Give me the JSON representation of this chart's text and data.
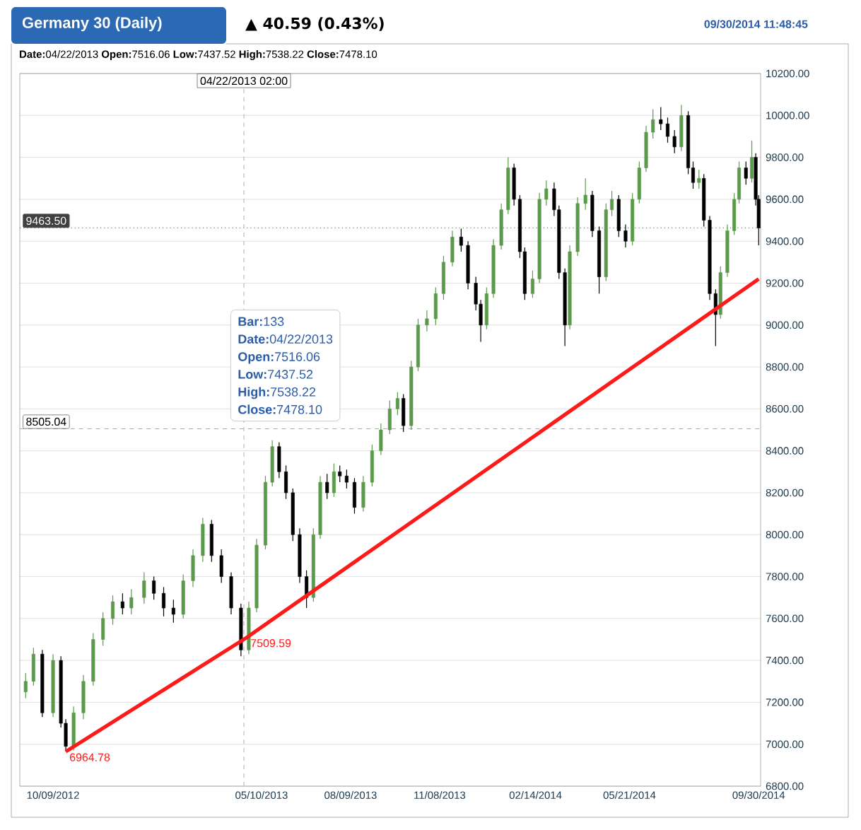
{
  "chart_data": {
    "type": "candlestick",
    "title": "Germany 30 (Daily)",
    "subtitle": "▲ 40.59 (0.43%)",
    "annotations": [
      "09/30/2014 11:48:45",
      "**Date:**04/22/2013 **Open:**7516.06 **Low:**7437.52 **High:**7538.22 **Close:**7478.10",
      "**Bar:**133",
      "**Date:**04/22/2013",
      "**Open:**7516.06",
      "**Low:**7437.52",
      "**High:**7538.22",
      "**Close:**7478.10",
      {
        "text": "6964.78",
        "x": "2012-10-22",
        "y": 6964.78
      },
      {
        "text": "7509.59",
        "x": "2013-04-25",
        "y": 7509.59
      }
    ],
    "x": [
      "2012-09-11",
      "2012-09-19",
      "2012-09-28",
      "2012-10-09",
      "2012-10-17",
      "2012-10-22",
      "2012-10-30",
      "2012-11-09",
      "2012-11-19",
      "2012-11-29",
      "2012-12-09",
      "2012-12-19",
      "2012-12-28",
      "2013-01-10",
      "2013-01-20",
      "2013-01-30",
      "2013-02-09",
      "2013-02-19",
      "2013-03-01",
      "2013-03-11",
      "2013-03-20",
      "2013-03-30",
      "2013-04-09",
      "2013-04-19",
      "2013-04-27",
      "2013-05-05",
      "2013-05-14",
      "2013-05-21",
      "2013-05-28",
      "2013-06-04",
      "2013-06-11",
      "2013-06-18",
      "2013-06-25",
      "2013-07-02",
      "2013-07-09",
      "2013-07-16",
      "2013-07-23",
      "2013-07-29",
      "2013-08-05",
      "2013-08-13",
      "2013-08-22",
      "2013-08-31",
      "2013-09-09",
      "2013-09-18",
      "2013-09-26",
      "2013-10-02",
      "2013-10-10",
      "2013-10-17",
      "2013-10-26",
      "2013-11-04",
      "2013-11-12",
      "2013-11-21",
      "2013-11-30",
      "2013-12-07",
      "2013-12-15",
      "2013-12-20",
      "2013-12-26",
      "2014-01-02",
      "2014-01-10",
      "2014-01-17",
      "2014-01-23",
      "2014-01-29",
      "2014-02-03",
      "2014-02-11",
      "2014-02-18",
      "2014-02-25",
      "2014-03-05",
      "2014-03-10",
      "2014-03-16",
      "2014-03-21",
      "2014-03-29",
      "2014-04-06",
      "2014-04-13",
      "2014-04-20",
      "2014-04-27",
      "2014-05-03",
      "2014-05-10",
      "2014-05-17",
      "2014-05-24",
      "2014-05-31",
      "2014-06-07",
      "2014-06-14",
      "2014-06-22",
      "2014-06-29",
      "2014-07-06",
      "2014-07-13",
      "2014-07-20",
      "2014-07-25",
      "2014-07-31",
      "2014-08-05",
      "2014-08-11",
      "2014-08-17",
      "2014-08-22",
      "2014-08-29",
      "2014-09-05",
      "2014-09-10",
      "2014-09-17",
      "2014-09-23",
      "2014-09-27",
      "2014-09-30"
    ],
    "ohlc": [
      [
        7250,
        7340,
        7220,
        7300
      ],
      [
        7300,
        7460,
        7280,
        7430
      ],
      [
        7430,
        7450,
        7130,
        7150
      ],
      [
        7150,
        7430,
        7130,
        7400
      ],
      [
        7400,
        7420,
        7080,
        7100
      ],
      [
        7100,
        7120,
        6965,
        6990
      ],
      [
        6990,
        7180,
        6970,
        7150
      ],
      [
        7150,
        7330,
        7120,
        7300
      ],
      [
        7300,
        7530,
        7280,
        7500
      ],
      [
        7500,
        7630,
        7470,
        7600
      ],
      [
        7600,
        7710,
        7570,
        7680
      ],
      [
        7680,
        7720,
        7620,
        7650
      ],
      [
        7650,
        7740,
        7620,
        7700
      ],
      [
        7700,
        7820,
        7670,
        7780
      ],
      [
        7780,
        7800,
        7690,
        7720
      ],
      [
        7720,
        7750,
        7610,
        7650
      ],
      [
        7650,
        7690,
        7580,
        7620
      ],
      [
        7620,
        7810,
        7600,
        7780
      ],
      [
        7780,
        7930,
        7750,
        7900
      ],
      [
        7900,
        8080,
        7870,
        8050
      ],
      [
        8050,
        8070,
        7870,
        7900
      ],
      [
        7900,
        7930,
        7770,
        7800
      ],
      [
        7800,
        7820,
        7620,
        7650
      ],
      [
        7650,
        7670,
        7420,
        7450
      ],
      [
        7450,
        7680,
        7430,
        7650
      ],
      [
        7650,
        7980,
        7630,
        7950
      ],
      [
        7950,
        8280,
        7930,
        8250
      ],
      [
        8250,
        8450,
        8230,
        8420
      ],
      [
        8420,
        8440,
        8270,
        8300
      ],
      [
        8300,
        8330,
        8170,
        8200
      ],
      [
        8200,
        8220,
        7970,
        8000
      ],
      [
        8000,
        8030,
        7770,
        7800
      ],
      [
        7800,
        7830,
        7650,
        7700
      ],
      [
        7700,
        8030,
        7680,
        8000
      ],
      [
        8000,
        8280,
        7980,
        8250
      ],
      [
        8250,
        8290,
        8170,
        8200
      ],
      [
        8200,
        8340,
        8180,
        8300
      ],
      [
        8300,
        8330,
        8250,
        8280
      ],
      [
        8280,
        8310,
        8220,
        8250
      ],
      [
        8250,
        8270,
        8100,
        8130
      ],
      [
        8130,
        8280,
        8110,
        8250
      ],
      [
        8250,
        8430,
        8230,
        8400
      ],
      [
        8400,
        8530,
        8380,
        8500
      ],
      [
        8500,
        8640,
        8480,
        8600
      ],
      [
        8600,
        8680,
        8570,
        8650
      ],
      [
        8650,
        8670,
        8490,
        8520
      ],
      [
        8520,
        8830,
        8500,
        8800
      ],
      [
        8800,
        9030,
        8780,
        9000
      ],
      [
        9000,
        9070,
        8970,
        9030
      ],
      [
        9030,
        9180,
        9000,
        9150
      ],
      [
        9150,
        9330,
        9120,
        9300
      ],
      [
        9300,
        9450,
        9280,
        9420
      ],
      [
        9420,
        9460,
        9350,
        9380
      ],
      [
        9380,
        9400,
        9170,
        9200
      ],
      [
        9200,
        9230,
        9070,
        9100
      ],
      [
        9100,
        9120,
        8920,
        9000
      ],
      [
        9000,
        9180,
        8980,
        9150
      ],
      [
        9150,
        9410,
        9130,
        9380
      ],
      [
        9380,
        9580,
        9360,
        9550
      ],
      [
        9550,
        9800,
        9530,
        9750
      ],
      [
        9750,
        9770,
        9570,
        9600
      ],
      [
        9600,
        9620,
        9320,
        9350
      ],
      [
        9350,
        9370,
        9120,
        9150
      ],
      [
        9150,
        9260,
        9130,
        9220
      ],
      [
        9220,
        9630,
        9200,
        9600
      ],
      [
        9600,
        9690,
        9570,
        9650
      ],
      [
        9650,
        9680,
        9520,
        9550
      ],
      [
        9550,
        9570,
        9220,
        9250
      ],
      [
        9250,
        9270,
        8900,
        9000
      ],
      [
        9000,
        9380,
        8980,
        9350
      ],
      [
        9350,
        9610,
        9330,
        9580
      ],
      [
        9580,
        9700,
        9550,
        9620
      ],
      [
        9620,
        9640,
        9420,
        9450
      ],
      [
        9450,
        9470,
        9150,
        9230
      ],
      [
        9230,
        9580,
        9210,
        9550
      ],
      [
        9550,
        9640,
        9520,
        9600
      ],
      [
        9600,
        9620,
        9420,
        9450
      ],
      [
        9450,
        9480,
        9370,
        9400
      ],
      [
        9400,
        9630,
        9380,
        9600
      ],
      [
        9600,
        9780,
        9580,
        9750
      ],
      [
        9750,
        9950,
        9730,
        9920
      ],
      [
        9920,
        10030,
        9890,
        9980
      ],
      [
        9980,
        10040,
        9930,
        9960
      ],
      [
        9960,
        9990,
        9870,
        9900
      ],
      [
        9900,
        9930,
        9820,
        9850
      ],
      [
        9850,
        10050,
        9830,
        10000
      ],
      [
        10000,
        10020,
        9720,
        9750
      ],
      [
        9750,
        9780,
        9650,
        9680
      ],
      [
        9680,
        9740,
        9650,
        9700
      ],
      [
        9700,
        9720,
        9470,
        9500
      ],
      [
        9500,
        9520,
        9120,
        9150
      ],
      [
        9150,
        9170,
        8900,
        9050
      ],
      [
        9050,
        9280,
        9030,
        9250
      ],
      [
        9250,
        9480,
        9230,
        9450
      ],
      [
        9450,
        9630,
        9430,
        9600
      ],
      [
        9600,
        9780,
        9580,
        9750
      ],
      [
        9750,
        9780,
        9670,
        9700
      ],
      [
        9700,
        9880,
        9680,
        9800
      ],
      [
        9800,
        9820,
        9570,
        9600
      ],
      [
        9600,
        9620,
        9380,
        9463.5
      ]
    ],
    "colors": [
      "#5b9a4b",
      "#5b9a4b",
      "#000000",
      "#5b9a4b",
      "#000000",
      "#000000",
      "#5b9a4b",
      "#5b9a4b",
      "#5b9a4b",
      "#5b9a4b",
      "#5b9a4b",
      "#000000",
      "#5b9a4b",
      "#5b9a4b",
      "#000000",
      "#000000",
      "#000000",
      "#5b9a4b",
      "#5b9a4b",
      "#5b9a4b",
      "#000000",
      "#000000",
      "#000000",
      "#000000",
      "#5b9a4b",
      "#5b9a4b",
      "#5b9a4b",
      "#5b9a4b",
      "#000000",
      "#000000",
      "#000000",
      "#000000",
      "#000000",
      "#5b9a4b",
      "#5b9a4b",
      "#000000",
      "#5b9a4b",
      "#000000",
      "#000000",
      "#000000",
      "#5b9a4b",
      "#5b9a4b",
      "#5b9a4b",
      "#5b9a4b",
      "#5b9a4b",
      "#000000",
      "#5b9a4b",
      "#5b9a4b",
      "#5b9a4b",
      "#5b9a4b",
      "#5b9a4b",
      "#5b9a4b",
      "#000000",
      "#000000",
      "#000000",
      "#000000",
      "#5b9a4b",
      "#5b9a4b",
      "#5b9a4b",
      "#5b9a4b",
      "#000000",
      "#000000",
      "#000000",
      "#5b9a4b",
      "#5b9a4b",
      "#5b9a4b",
      "#000000",
      "#000000",
      "#000000",
      "#5b9a4b",
      "#5b9a4b",
      "#5b9a4b",
      "#000000",
      "#000000",
      "#5b9a4b",
      "#5b9a4b",
      "#000000",
      "#000000",
      "#5b9a4b",
      "#5b9a4b",
      "#5b9a4b",
      "#5b9a4b",
      "#000000",
      "#000000",
      "#000000",
      "#5b9a4b",
      "#000000",
      "#000000",
      "#5b9a4b",
      "#000000",
      "#000000",
      "#000000",
      "#5b9a4b",
      "#5b9a4b",
      "#5b9a4b",
      "#5b9a4b",
      "#000000",
      "#5b9a4b",
      "#000000",
      "#000000"
    ],
    "series": [
      {
        "type": "line",
        "x": [
          "2012-10-22",
          "2013-04-25",
          "2014-09-30"
        ],
        "values": [
          6964.78,
          7509.59,
          9220
        ],
        "color": "#ff1a1a"
      }
    ],
    "xlim": [
      "2012-09-05",
      "2014-10-02"
    ],
    "xticks": [
      {
        "value": "2012-10-09",
        "label": "10/09/2012"
      },
      {
        "value": "2013-05-10",
        "label": "05/10/2013"
      },
      {
        "value": "2013-08-09",
        "label": "08/09/2013"
      },
      {
        "value": "2013-11-08",
        "label": "11/08/2013"
      },
      {
        "value": "2014-02-14",
        "label": "02/14/2014"
      },
      {
        "value": "2014-05-21",
        "label": "05/21/2014"
      },
      {
        "value": "2014-09-30",
        "label": "09/30/2014"
      }
    ],
    "ylim": [
      6800,
      10200
    ],
    "yticks": [
      {
        "value": 6800,
        "label": "6800.00"
      },
      {
        "value": 7000,
        "label": "7000.00"
      },
      {
        "value": 7200,
        "label": "7200.00"
      },
      {
        "value": 7400,
        "label": "7400.00"
      },
      {
        "value": 7600,
        "label": "7600.00"
      },
      {
        "value": 7800,
        "label": "7800.00"
      },
      {
        "value": 8000,
        "label": "8000.00"
      },
      {
        "value": 8200,
        "label": "8200.00"
      },
      {
        "value": 8400,
        "label": "8400.00"
      },
      {
        "value": 8600,
        "label": "8600.00"
      },
      {
        "value": 8800,
        "label": "8800.00"
      },
      {
        "value": 9000,
        "label": "9000.00"
      },
      {
        "value": 9200,
        "label": "9200.00"
      },
      {
        "value": 9400,
        "label": "9400.00"
      },
      {
        "value": 9600,
        "label": "9600.00"
      },
      {
        "value": 9800,
        "label": "9800.00"
      },
      {
        "value": 10000,
        "label": "10000.00"
      },
      {
        "value": 10200,
        "label": "10200.00"
      }
    ],
    "ref_lines": [
      {
        "axis": "y",
        "value": 9463.5,
        "label": "9463.50",
        "line_style": "dotted",
        "color": "#777777"
      },
      {
        "axis": "y",
        "value": 8505.04,
        "label": "8505.04",
        "line_style": "dashed",
        "color": "#aaaaaa"
      },
      {
        "axis": "x",
        "value": "2013-04-22",
        "label": "04/22/2013 02:00",
        "line_style": "dashed",
        "color": "#bbbbbb"
      }
    ],
    "grid": "y"
  }
}
